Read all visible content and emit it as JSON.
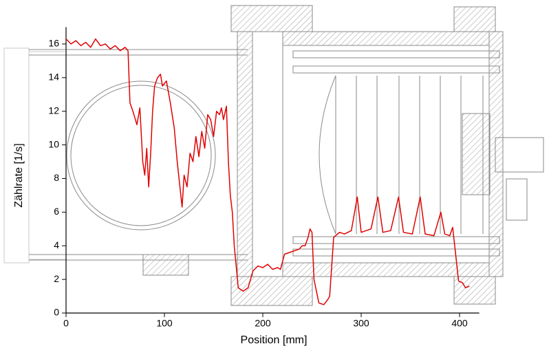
{
  "chart_data": {
    "type": "line",
    "x_label": "Position [mm]",
    "y_label": "Zählrate [1/s]",
    "x": [
      0,
      5,
      10,
      15,
      20,
      25,
      30,
      35,
      40,
      45,
      50,
      55,
      60,
      63,
      65,
      68,
      72,
      75,
      78,
      80,
      82,
      84,
      86,
      88,
      90,
      93,
      96,
      98,
      102,
      106,
      110,
      113,
      118,
      120,
      123,
      126,
      129,
      132,
      135,
      138,
      141,
      144,
      147,
      150,
      153,
      156,
      158,
      160,
      163,
      165,
      167,
      169,
      171,
      175,
      180,
      185,
      190,
      195,
      200,
      205,
      210,
      215,
      218,
      222,
      227,
      232,
      237,
      240,
      243,
      246,
      248,
      250,
      252,
      257,
      262,
      266,
      268,
      272,
      278,
      283,
      290,
      296,
      300,
      310,
      317,
      322,
      330,
      338,
      343,
      352,
      360,
      365,
      374,
      381,
      385,
      390,
      393,
      396,
      399,
      403,
      406,
      410
    ],
    "values": [
      16.3,
      16.0,
      16.2,
      15.9,
      16.1,
      15.8,
      16.3,
      15.9,
      16.0,
      15.7,
      15.9,
      15.6,
      15.8,
      15.6,
      12.5,
      12.0,
      11.2,
      12.2,
      9.0,
      8.2,
      9.8,
      7.5,
      9.5,
      12.0,
      13.5,
      14.0,
      14.2,
      13.5,
      13.8,
      12.5,
      11.0,
      9.0,
      6.3,
      8.2,
      7.5,
      9.5,
      9.0,
      10.5,
      9.3,
      10.8,
      9.8,
      11.8,
      11.5,
      10.5,
      12.0,
      11.8,
      12.2,
      11.5,
      12.3,
      9.0,
      7.0,
      6.0,
      4.0,
      1.5,
      1.3,
      1.5,
      2.5,
      2.8,
      2.7,
      2.9,
      2.6,
      2.7,
      2.6,
      3.5,
      3.6,
      3.7,
      3.8,
      4.0,
      4.0,
      4.5,
      5.0,
      4.8,
      2.0,
      0.6,
      0.5,
      0.8,
      1.0,
      4.5,
      4.8,
      4.7,
      4.9,
      6.9,
      4.8,
      5.0,
      6.9,
      4.8,
      4.9,
      6.9,
      4.8,
      4.7,
      6.9,
      4.7,
      4.6,
      6.0,
      4.7,
      4.6,
      5.1,
      3.5,
      1.9,
      1.8,
      1.5,
      1.6
    ],
    "color": "#e00000",
    "xlim": [
      0,
      420
    ],
    "ylim": [
      0,
      17
    ],
    "xticks": [
      0,
      100,
      200,
      300,
      400
    ],
    "yticks": [
      0,
      2,
      4,
      6,
      8,
      10,
      12,
      14,
      16
    ]
  }
}
